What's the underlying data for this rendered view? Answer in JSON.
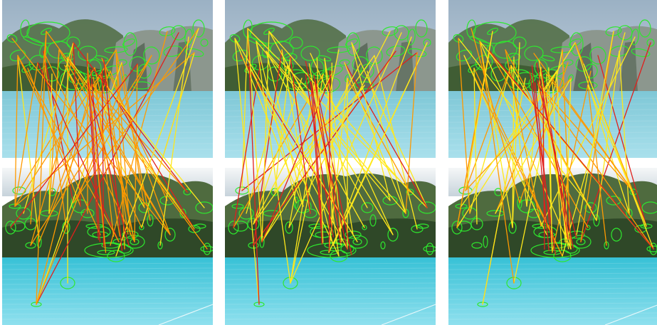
{
  "figure": {
    "panel_count": 3,
    "panels": [
      {
        "id": "panel-0",
        "dominant_match_color": "orange"
      },
      {
        "id": "panel-1",
        "dominant_match_color": "yellow"
      },
      {
        "id": "panel-2",
        "dominant_match_color": "yellow-orange"
      }
    ],
    "colors": {
      "sky_top": "#9bb1c4",
      "sky_bottom": "#d8e3ec",
      "cliff_dark": "#3a4b38",
      "cliff_light": "#8c978e",
      "foliage": "#4f6b3f",
      "sea_top": "#7ec7d6",
      "sea_bottom": "#a9e0ec",
      "turquoise_top": "#37c1d6",
      "turquoise_bottom": "#8fe0ee",
      "separator": "#ffffff",
      "keypoint": "#2ee82e",
      "match_red": "#e0201c",
      "match_orange": "#ff9a00",
      "match_yellow": "#ffe81a"
    }
  }
}
